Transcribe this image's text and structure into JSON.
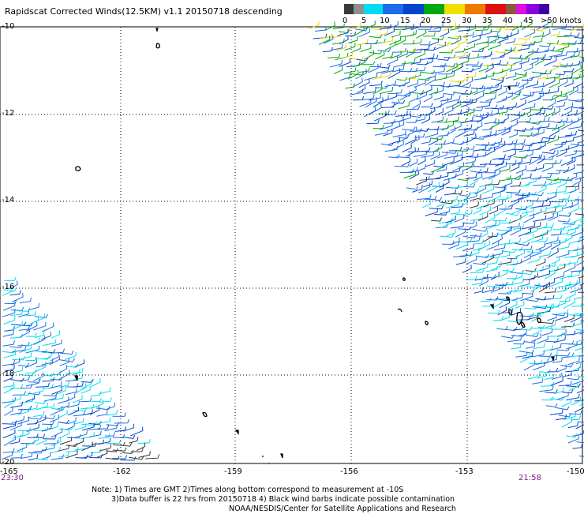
{
  "title": "Rapidscat Corrected Winds(12.5KM) v1.1 20150718 descending",
  "legend": {
    "labels": [
      "0",
      "5",
      "10",
      "15",
      "20",
      "25",
      "30",
      "35",
      "40",
      "45",
      ">50 knots"
    ],
    "colors": [
      "#3a3a3a",
      "#8f8f8f",
      "#00dcf0",
      "#1c6ee8",
      "#0044d0",
      "#00a814",
      "#f0e000",
      "#f07a00",
      "#e01010",
      "#8a5a3a",
      "#e010e0",
      "#8a00e0",
      "#3c00a0"
    ]
  },
  "map": {
    "lat_labels": [
      "-10",
      "-12",
      "-14",
      "-16",
      "-18",
      "-20"
    ],
    "lon_labels": [
      "-165",
      "-162",
      "-159",
      "-156",
      "-153",
      "-150"
    ],
    "time_left": "23:30",
    "time_right": "21:58"
  },
  "note": {
    "line1": "Note: 1) Times are GMT 2)Times along bottom correspond to measurement at -10S",
    "line2": "3)Data buffer is 22 hrs from 20150718 4) Black wind barbs indicate possible contamination",
    "line3": "NOAA/NESDIS/Center for Satellite Applications and Research"
  }
}
